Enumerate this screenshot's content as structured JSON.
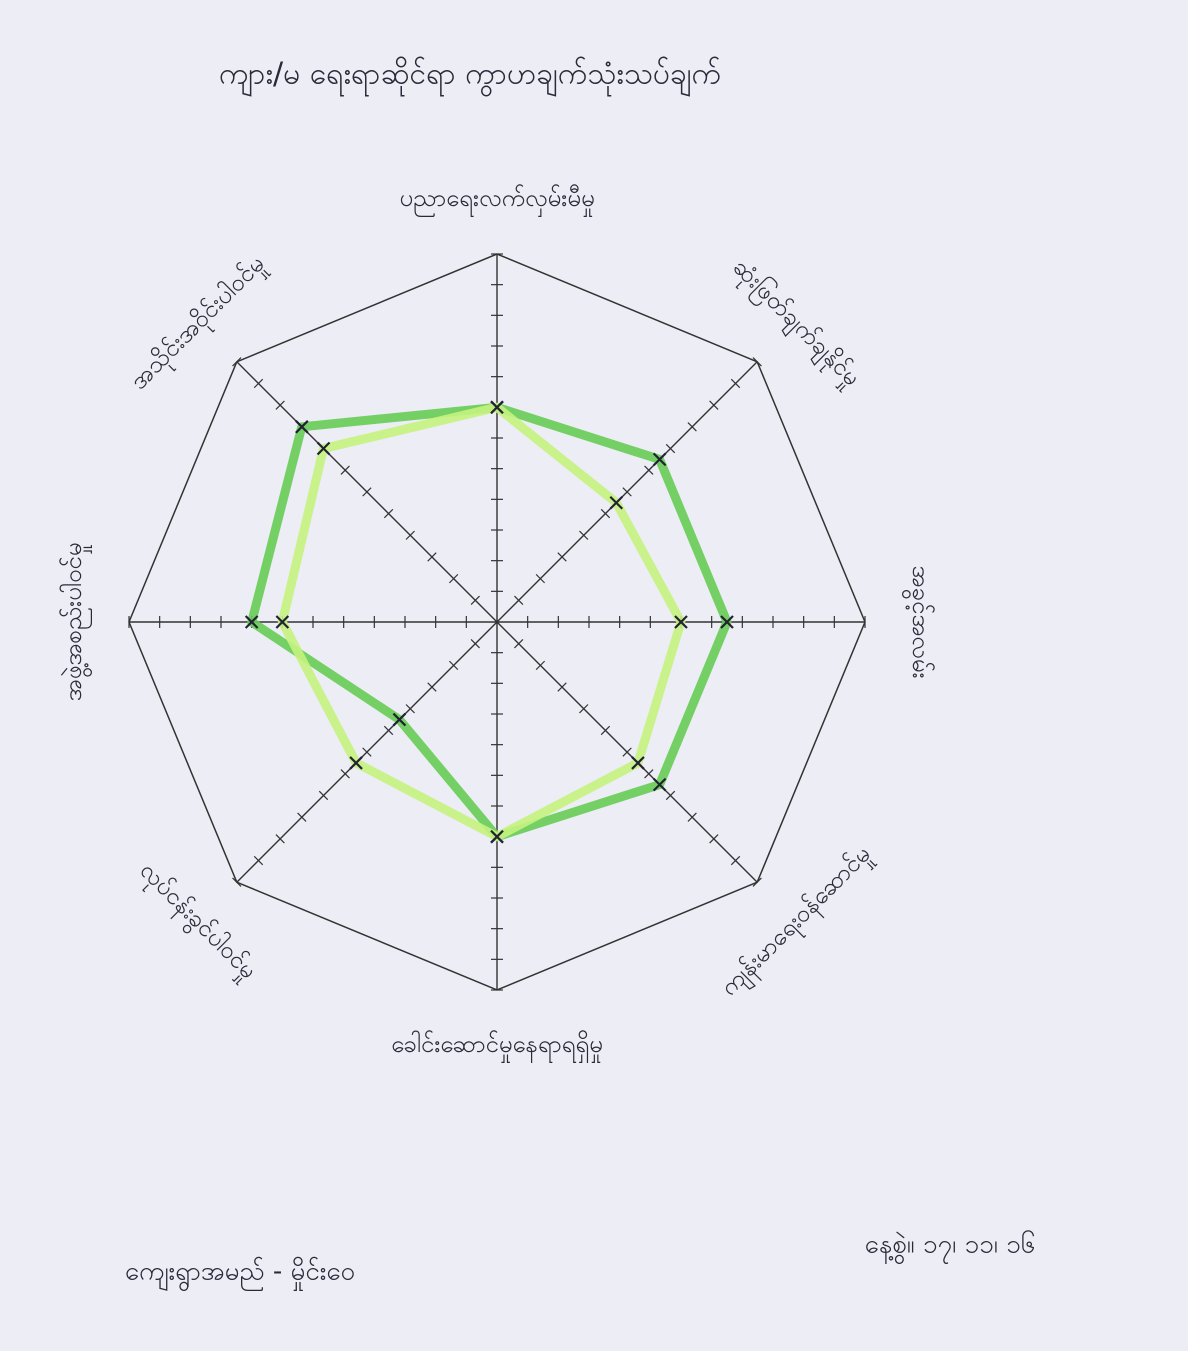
{
  "chart_data": {
    "type": "radar",
    "title": "ကျား/မ ရေးရာဆိုင်ရာ ကွာဟချက်သုံးသပ်ချက်",
    "categories": [
      "ပညာရေးလက်လှမ်းမီမှု",
      "ဆုံးဖြတ်ချက်ချနိုင်မှု",
      "အခွင့်အလမ်း",
      "ကျန်းမာရေးဝန်ဆောင်မှု",
      "ခေါင်းဆောင်မှုနေရာရရှိမှု",
      "လုပ်ငန်းခွင်ပါဝင်မှု",
      "အဖွဲ့အစည်းပါဝင်မှု",
      "အသိုင်းအဝိုင်းပါဝင်မှု"
    ],
    "series": [
      {
        "color": "#66cc55",
        "values": [
          7,
          7.5,
          7.5,
          7.5,
          7,
          4.5,
          8,
          9
        ]
      },
      {
        "color": "#c4f27e",
        "values": [
          7,
          5.5,
          6,
          6.5,
          7,
          6.5,
          7,
          8
        ]
      }
    ],
    "rlim": [
      0,
      12
    ],
    "rticks": [
      1,
      2,
      3,
      4,
      5,
      6,
      7,
      8,
      9,
      10,
      11,
      12
    ],
    "footer_left": "ကျေးရွာအမည် - မှိုင်းဝေ",
    "footer_right": "နေ့စွဲ။ ၁၇၊ ၁၁၊ ၁၆"
  }
}
